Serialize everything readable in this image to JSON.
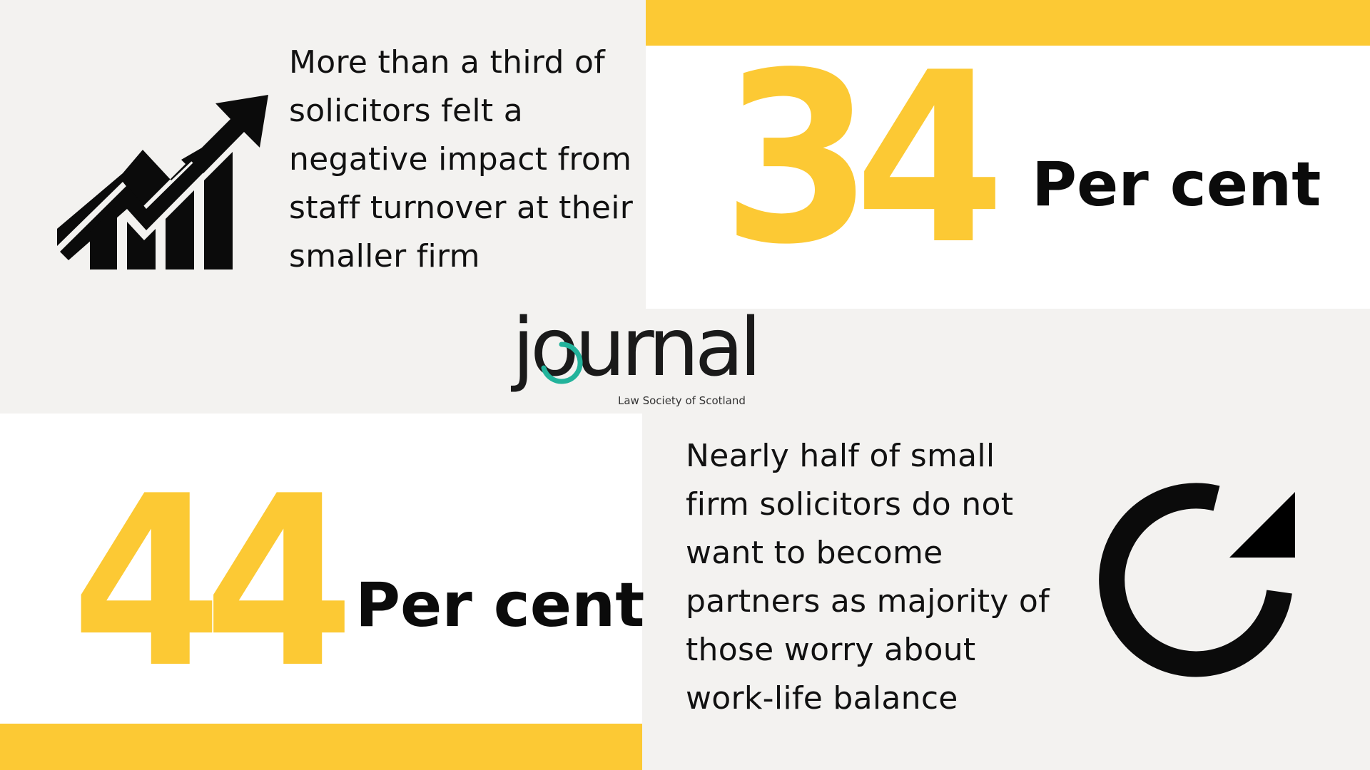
{
  "top_left": {
    "text": "More than a third of solicitors felt a negative impact from staff turnover at their smaller firm",
    "icon": "rising-chart-icon"
  },
  "top_right": {
    "number": "34",
    "unit": "Per cent"
  },
  "bottom_left": {
    "number": "44",
    "unit": "Per cent"
  },
  "bottom_right": {
    "text": "Nearly half of small firm solicitors do not want to become partners as majority of those worry about work-life balance",
    "icon": "refresh-icon"
  },
  "logo": {
    "wordmark": "journal",
    "subtitle": "Law Society of Scotland"
  },
  "colors": {
    "accent_yellow": "#fcc934",
    "background_light": "#f3f2f0",
    "panel_white": "#ffffff",
    "text_dark": "#0b0b0b",
    "logo_teal": "#22b39b"
  }
}
